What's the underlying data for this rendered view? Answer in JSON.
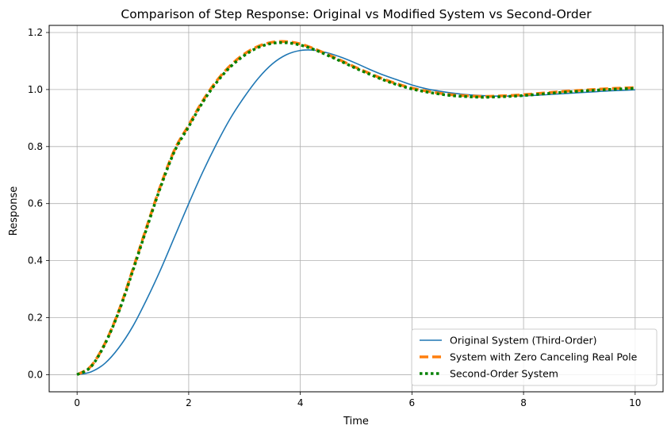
{
  "chart_data": {
    "type": "line",
    "title": "Comparison of Step Response: Original vs Modified System vs Second-Order",
    "xlabel": "Time",
    "ylabel": "Response",
    "xlim": [
      -0.5,
      10.5
    ],
    "ylim": [
      -0.06,
      1.225
    ],
    "xticks": [
      0,
      2,
      4,
      6,
      8,
      10
    ],
    "yticks": [
      0.0,
      0.2,
      0.4,
      0.6,
      0.8,
      1.0,
      1.2
    ],
    "xtick_labels": [
      "0",
      "2",
      "4",
      "6",
      "8",
      "10"
    ],
    "ytick_labels": [
      "0.0",
      "0.2",
      "0.4",
      "0.6",
      "0.8",
      "1.0",
      "1.2"
    ],
    "grid": true,
    "legend_position": "lower-right",
    "x": [
      0,
      0.25,
      0.5,
      0.75,
      1,
      1.25,
      1.5,
      1.75,
      2,
      2.25,
      2.5,
      2.75,
      3,
      3.25,
      3.5,
      3.75,
      4,
      4.25,
      4.5,
      4.75,
      5,
      5.25,
      5.5,
      5.75,
      6,
      6.25,
      6.5,
      6.75,
      7,
      7.25,
      7.5,
      7.75,
      8,
      8.25,
      8.5,
      8.75,
      9,
      9.25,
      9.5,
      9.75,
      10
    ],
    "series": [
      {
        "name": "Original System (Third-Order)",
        "color": "#1f77b4",
        "style": "solid",
        "values": [
          0.0,
          0.01,
          0.04,
          0.095,
          0.17,
          0.265,
          0.37,
          0.485,
          0.6,
          0.71,
          0.81,
          0.9,
          0.975,
          1.04,
          1.09,
          1.122,
          1.137,
          1.138,
          1.128,
          1.112,
          1.092,
          1.07,
          1.05,
          1.033,
          1.016,
          1.003,
          0.994,
          0.987,
          0.982,
          0.979,
          0.977,
          0.977,
          0.978,
          0.98,
          0.983,
          0.986,
          0.989,
          0.992,
          0.995,
          0.997,
          0.999
        ]
      },
      {
        "name": "System with Zero Canceling Real Pole",
        "color": "#ff7f0e",
        "style": "dashed",
        "values": [
          0.0,
          0.03,
          0.11,
          0.225,
          0.37,
          0.52,
          0.665,
          0.79,
          0.875,
          0.96,
          1.03,
          1.085,
          1.125,
          1.152,
          1.166,
          1.168,
          1.16,
          1.143,
          1.122,
          1.1,
          1.077,
          1.056,
          1.036,
          1.019,
          1.005,
          0.995,
          0.987,
          0.981,
          0.978,
          0.976,
          0.977,
          0.979,
          0.982,
          0.986,
          0.99,
          0.994,
          0.997,
          1.0,
          1.003,
          1.005,
          1.007
        ]
      },
      {
        "name": "Second-Order System",
        "color": "#008000",
        "style": "dotted",
        "values": [
          0.0,
          0.028,
          0.108,
          0.222,
          0.365,
          0.515,
          0.66,
          0.785,
          0.87,
          0.955,
          1.025,
          1.08,
          1.12,
          1.148,
          1.162,
          1.164,
          1.156,
          1.14,
          1.119,
          1.097,
          1.074,
          1.053,
          1.033,
          1.016,
          1.002,
          0.992,
          0.984,
          0.978,
          0.975,
          0.973,
          0.974,
          0.976,
          0.979,
          0.983,
          0.987,
          0.991,
          0.994,
          0.997,
          1.0,
          1.002,
          1.004
        ]
      }
    ]
  }
}
